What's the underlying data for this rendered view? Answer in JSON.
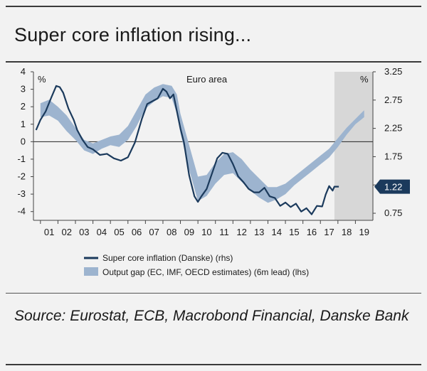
{
  "page": {
    "title": "Super core inflation rising...",
    "source": "Source: Eurostat, ECB, Macrobond Financial, Danske Bank"
  },
  "colors": {
    "line": "#1b3a5c",
    "band": "#9db4cf",
    "forecast_shade": "#d7d7d7",
    "callout": "#1b3a5c",
    "background": "#f2f2f2"
  },
  "chart_data": {
    "type": "line",
    "title": "Euro area",
    "left_axis": {
      "unit": "%",
      "ylim": [
        -4.5,
        4
      ],
      "ticks": [
        4,
        3,
        2,
        1,
        0,
        -1,
        -2,
        -3,
        -4
      ]
    },
    "right_axis": {
      "unit": "%",
      "ylim": [
        0.625,
        3.25
      ],
      "ticks": [
        "3.25",
        "2.75",
        "2.25",
        "1.75",
        "1.25",
        "0.75"
      ]
    },
    "x_ticks": [
      "01",
      "02",
      "03",
      "04",
      "05",
      "06",
      "07",
      "08",
      "09",
      "10",
      "11",
      "12",
      "13",
      "14",
      "15",
      "16",
      "17",
      "18",
      "19"
    ],
    "xlim": [
      2000.6,
      2020.0
    ],
    "forecast_from": 2017.8,
    "last_value_label": "1.22",
    "series": [
      {
        "name": "Super core inflation (Danske) (rhs)",
        "axis": "right",
        "x": [
          2000.75,
          2001.0,
          2001.3,
          2001.6,
          2001.9,
          2002.1,
          2002.3,
          2002.6,
          2002.9,
          2003.1,
          2003.4,
          2003.7,
          2004.0,
          2004.4,
          2004.8,
          2005.2,
          2005.6,
          2006.0,
          2006.4,
          2006.8,
          2007.1,
          2007.4,
          2007.7,
          2008.0,
          2008.2,
          2008.4,
          2008.6,
          2008.8,
          2009.0,
          2009.2,
          2009.5,
          2009.8,
          2010.0,
          2010.2,
          2010.5,
          2010.8,
          2011.1,
          2011.4,
          2011.7,
          2012.0,
          2012.3,
          2012.6,
          2012.9,
          2013.2,
          2013.5,
          2013.8,
          2014.1,
          2014.4,
          2014.7,
          2015.0,
          2015.3,
          2015.6,
          2015.9,
          2016.2,
          2016.5,
          2016.8,
          2017.1,
          2017.3,
          2017.5,
          2017.7,
          2017.8,
          2018.05
        ],
        "values": [
          2.22,
          2.4,
          2.55,
          2.78,
          3.0,
          2.98,
          2.88,
          2.6,
          2.4,
          2.22,
          2.05,
          1.92,
          1.88,
          1.78,
          1.8,
          1.72,
          1.68,
          1.74,
          2.0,
          2.42,
          2.68,
          2.73,
          2.78,
          2.95,
          2.9,
          2.78,
          2.85,
          2.55,
          2.25,
          2.0,
          1.42,
          1.05,
          0.95,
          1.05,
          1.18,
          1.45,
          1.72,
          1.82,
          1.8,
          1.62,
          1.4,
          1.3,
          1.18,
          1.12,
          1.12,
          1.2,
          1.05,
          1.02,
          0.88,
          0.94,
          0.86,
          0.92,
          0.78,
          0.84,
          0.73,
          0.88,
          0.87,
          1.08,
          1.23,
          1.15,
          1.22,
          1.22
        ]
      },
      {
        "name": "Output gap (EC, IMF, OECD estimates) (6m lead) (lhs)",
        "axis": "left",
        "x": [
          2001.0,
          2001.5,
          2002.0,
          2002.5,
          2003.0,
          2003.5,
          2004.0,
          2004.5,
          2005.0,
          2005.5,
          2006.0,
          2006.5,
          2007.0,
          2007.5,
          2008.0,
          2008.5,
          2008.8,
          2009.0,
          2009.5,
          2010.0,
          2010.5,
          2011.0,
          2011.5,
          2012.0,
          2012.5,
          2013.0,
          2013.5,
          2014.0,
          2014.5,
          2015.0,
          2015.5,
          2016.0,
          2016.5,
          2017.0,
          2017.5,
          2018.0,
          2018.5,
          2019.0,
          2019.5
        ],
        "low": [
          1.4,
          1.5,
          1.2,
          0.6,
          0.1,
          -0.5,
          -0.7,
          -0.4,
          -0.2,
          -0.3,
          0.1,
          0.9,
          1.9,
          2.3,
          2.6,
          2.5,
          1.6,
          0.5,
          -1.6,
          -3.4,
          -3.1,
          -2.4,
          -1.9,
          -1.8,
          -2.3,
          -2.8,
          -3.2,
          -3.5,
          -3.3,
          -3.0,
          -2.5,
          -2.1,
          -1.7,
          -1.3,
          -0.9,
          -0.3,
          0.4,
          1.0,
          1.4
        ],
        "high": [
          2.2,
          2.4,
          2.0,
          1.5,
          0.8,
          0.1,
          -0.1,
          0.1,
          0.3,
          0.4,
          0.9,
          1.8,
          2.7,
          3.1,
          3.3,
          3.2,
          2.7,
          1.6,
          -0.2,
          -2.0,
          -1.9,
          -1.2,
          -0.7,
          -0.6,
          -1.0,
          -1.6,
          -2.1,
          -2.6,
          -2.6,
          -2.4,
          -2.0,
          -1.6,
          -1.2,
          -0.8,
          -0.4,
          0.2,
          0.8,
          1.3,
          1.8
        ]
      }
    ],
    "legend": [
      {
        "label": "Super core inflation (Danske) (rhs)",
        "kind": "line"
      },
      {
        "label": "Output gap (EC, IMF, OECD estimates) (6m lead) (lhs)",
        "kind": "band"
      }
    ]
  }
}
